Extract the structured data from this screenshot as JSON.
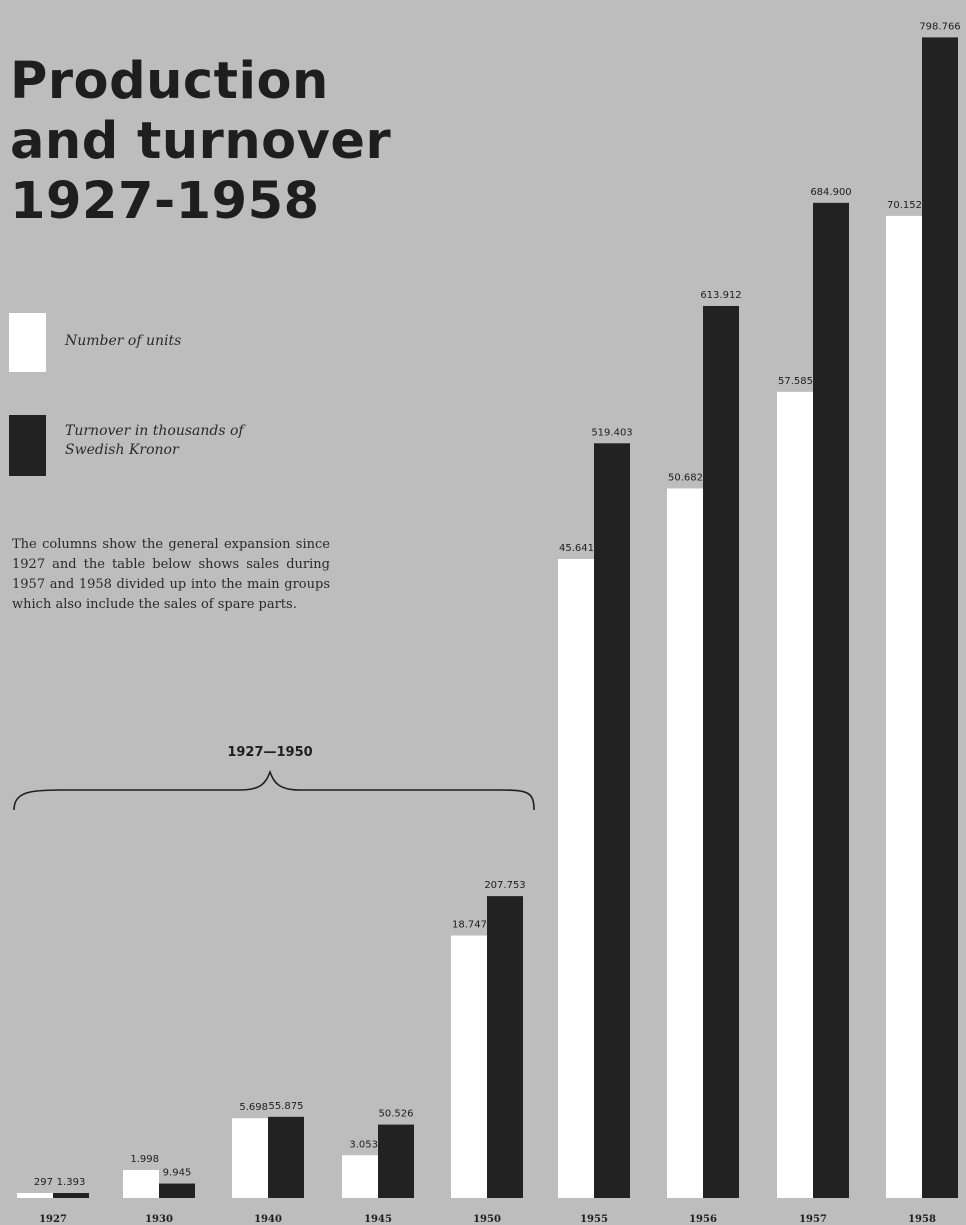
{
  "title_lines": [
    "Production",
    "and turnover",
    "1927-1958"
  ],
  "legend": {
    "units": "Number of units",
    "turnover_line1": "Turnover in thousands of",
    "turnover_line2": "Swedish Kronor"
  },
  "description": "The columns show the general expansion since 1927 and the table below shows sales during 1957 and 1958 divided up into the main groups which also include the sales of spare parts.",
  "brace_label": "1927—1950",
  "colors": {
    "background": "#bcbdbc",
    "units": "#ffffff",
    "turnover": "#222222"
  },
  "chart_data": {
    "type": "bar",
    "title": "Production and turnover 1927-1958",
    "categories": [
      "1927",
      "1930",
      "1940",
      "1945",
      "1950",
      "1955",
      "1956",
      "1957",
      "1958"
    ],
    "series": [
      {
        "name": "Number of units",
        "values": [
          297,
          1998,
          5698,
          3053,
          18747,
          45641,
          50682,
          57585,
          70152
        ],
        "labels": [
          "297",
          "1.998",
          "5.698",
          "3.053",
          "18.747",
          "45.641",
          "50.682",
          "57.585",
          "70.152"
        ]
      },
      {
        "name": "Turnover in thousands of Swedish Kronor",
        "values": [
          1393,
          9945,
          55875,
          50526,
          207753,
          519403,
          613912,
          684900,
          798766
        ],
        "labels": [
          "1.393",
          "9.945",
          "55.875",
          "50.526",
          "207.753",
          "519.403",
          "613.912",
          "684.900",
          "798.766"
        ]
      }
    ],
    "annotations": [
      {
        "text": "1927—1950",
        "spans": [
          "1927",
          "1950"
        ]
      }
    ],
    "grid": false
  }
}
